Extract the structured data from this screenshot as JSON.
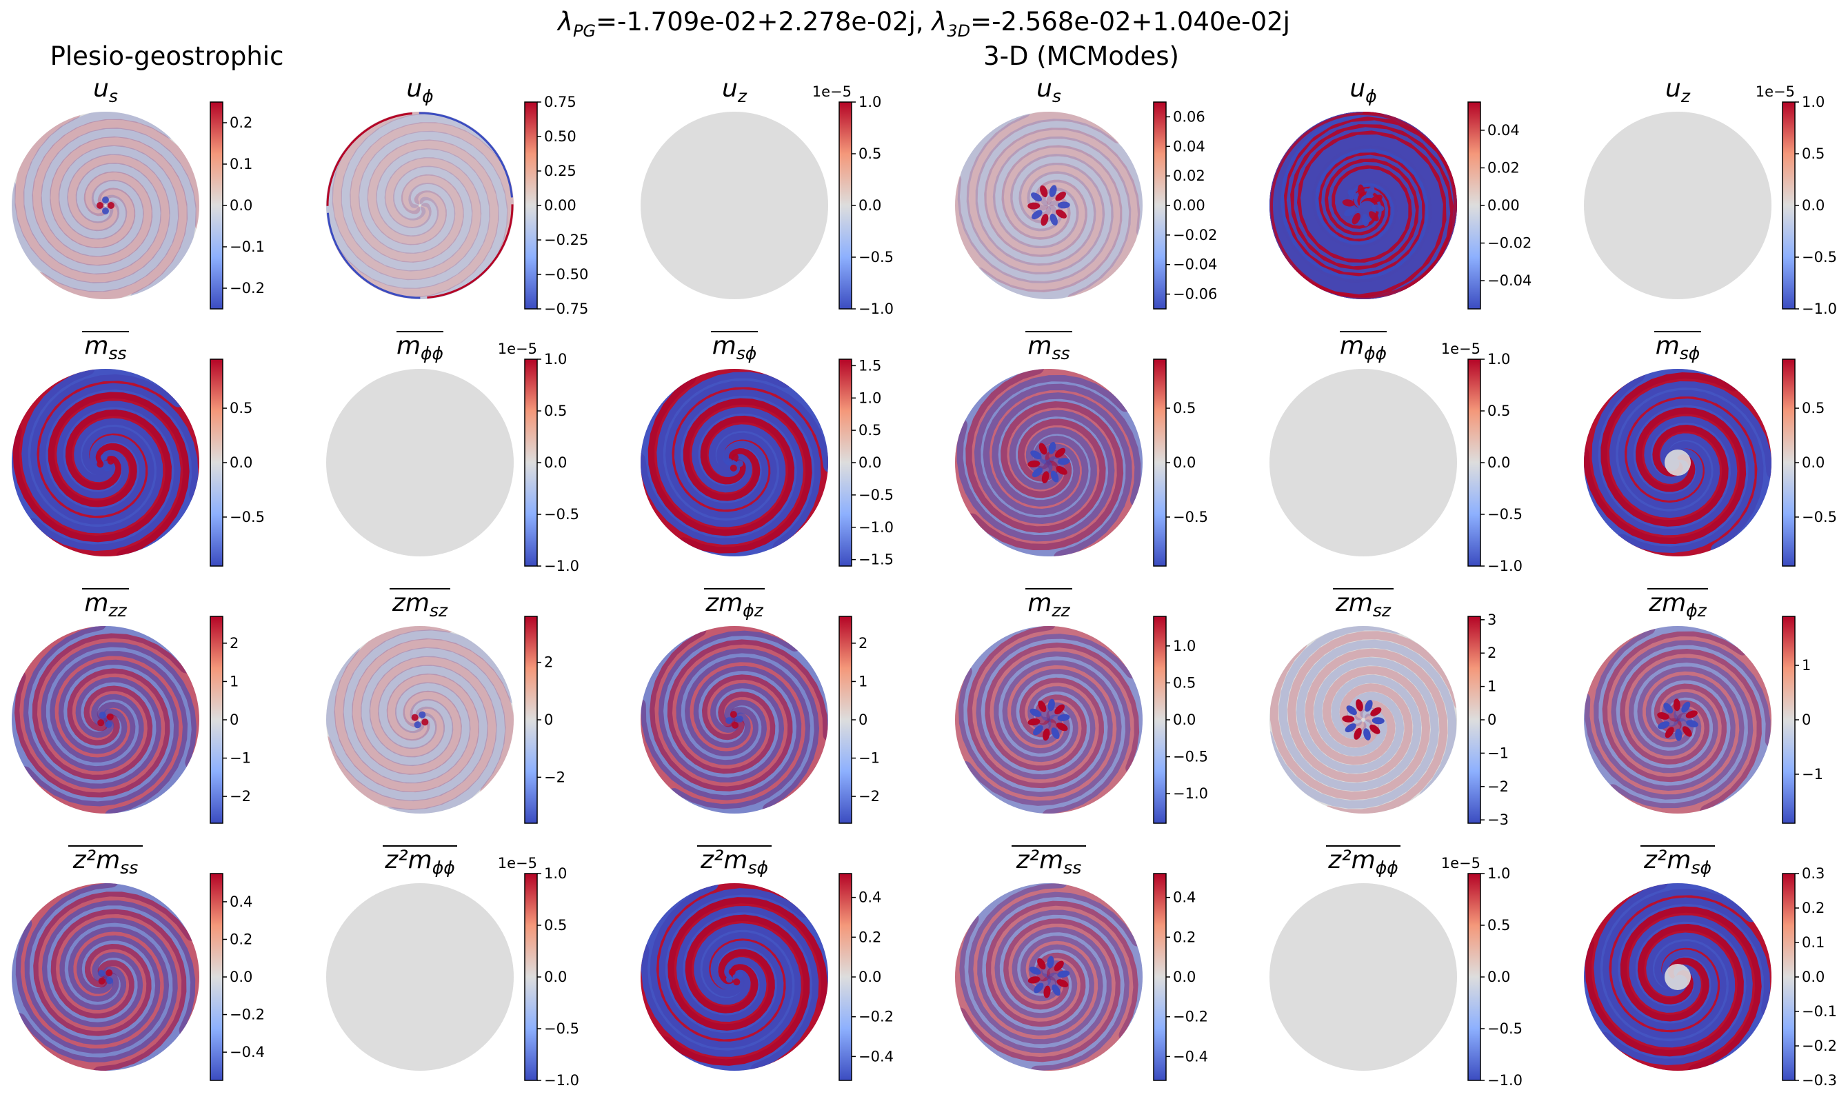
{
  "figure": {
    "suptitle": {
      "lambda_pg_label": "λ",
      "lambda_pg_sub": "PG",
      "lambda_pg_value": "=-1.709e-02+2.278e-02j, ",
      "lambda_3d_label": "λ",
      "lambda_3d_sub": "3D",
      "lambda_3d_value": "=-2.568e-02+1.040e-02j"
    },
    "group_titles": [
      "Plesio-geostrophic",
      "3-D (MCModes)"
    ],
    "colormap": "coolwarm",
    "colors": {
      "cmap_low": "#3b4cc0",
      "cmap_mid": "#dddddd",
      "cmap_high": "#b40426",
      "background_disk": "#dddddd"
    }
  },
  "chart_data": [
    {
      "type": "heatmap",
      "row": 0,
      "col": 0,
      "title": {
        "main": "u",
        "sub": "s",
        "overline": false,
        "pre": ""
      },
      "pattern": "spiral_center",
      "amplitude": 0.25,
      "tick_values": [
        0.2,
        0.1,
        0.0,
        -0.1,
        -0.2
      ],
      "tick_labels": [
        "0.2",
        "0.1",
        "0.0",
        "−0.1",
        "−0.2"
      ],
      "colorbar_range": [
        -0.25,
        0.25
      ],
      "exponent": ""
    },
    {
      "type": "heatmap",
      "row": 0,
      "col": 1,
      "title": {
        "main": "u",
        "sub": "ϕ",
        "overline": false,
        "pre": ""
      },
      "pattern": "spiral_rim",
      "amplitude": 0.75,
      "tick_values": [
        0.75,
        0.5,
        0.25,
        0.0,
        -0.25,
        -0.5,
        -0.75
      ],
      "tick_labels": [
        "0.75",
        "0.50",
        "0.25",
        "0.00",
        "−0.25",
        "−0.50",
        "−0.75"
      ],
      "colorbar_range": [
        -0.75,
        0.75
      ],
      "exponent": ""
    },
    {
      "type": "heatmap",
      "row": 0,
      "col": 2,
      "title": {
        "main": "u",
        "sub": "z",
        "overline": false,
        "pre": ""
      },
      "pattern": "zero",
      "amplitude": 1.0,
      "tick_values": [
        1.0,
        0.5,
        0.0,
        -0.5,
        -1.0
      ],
      "tick_labels": [
        "1.0",
        "0.5",
        "0.0",
        "−0.5",
        "−1.0"
      ],
      "colorbar_range": [
        -1.0,
        1.0
      ],
      "exponent": "1e−5"
    },
    {
      "type": "heatmap",
      "row": 0,
      "col": 3,
      "title": {
        "main": "u",
        "sub": "s",
        "overline": false,
        "pre": ""
      },
      "pattern": "lobes_weak",
      "amplitude": 0.07,
      "tick_values": [
        0.06,
        0.04,
        0.02,
        0.0,
        -0.02,
        -0.04,
        -0.06
      ],
      "tick_labels": [
        "0.06",
        "0.04",
        "0.02",
        "0.00",
        "−0.02",
        "−0.04",
        "−0.06"
      ],
      "colorbar_range": [
        -0.07,
        0.07
      ],
      "exponent": ""
    },
    {
      "type": "heatmap",
      "row": 0,
      "col": 4,
      "title": {
        "main": "u",
        "sub": "ϕ",
        "overline": false,
        "pre": ""
      },
      "pattern": "ring_strong",
      "amplitude": 0.055,
      "tick_values": [
        0.04,
        0.02,
        0.0,
        -0.02,
        -0.04
      ],
      "tick_labels": [
        "0.04",
        "0.02",
        "0.00",
        "−0.02",
        "−0.04"
      ],
      "colorbar_range": [
        -0.055,
        0.055
      ],
      "exponent": ""
    },
    {
      "type": "heatmap",
      "row": 0,
      "col": 5,
      "title": {
        "main": "u",
        "sub": "z",
        "overline": false,
        "pre": ""
      },
      "pattern": "zero",
      "amplitude": 1.0,
      "tick_values": [
        1.0,
        0.5,
        0.0,
        -0.5,
        -1.0
      ],
      "tick_labels": [
        "1.0",
        "0.5",
        "0.0",
        "−0.5",
        "−1.0"
      ],
      "colorbar_range": [
        -1.0,
        1.0
      ],
      "exponent": "1e−5"
    },
    {
      "type": "heatmap",
      "row": 1,
      "col": 0,
      "title": {
        "main": "m",
        "sub": "ss",
        "overline": true,
        "pre": ""
      },
      "pattern": "spiral_strong",
      "amplitude": 0.95,
      "tick_values": [
        0.5,
        0.0,
        -0.5
      ],
      "tick_labels": [
        "0.5",
        "0.0",
        "−0.5"
      ],
      "colorbar_range": [
        -0.95,
        0.95
      ],
      "exponent": ""
    },
    {
      "type": "heatmap",
      "row": 1,
      "col": 1,
      "title": {
        "main": "m",
        "sub": "ϕϕ",
        "overline": true,
        "pre": ""
      },
      "pattern": "zero",
      "amplitude": 1.0,
      "tick_values": [
        1.0,
        0.5,
        0.0,
        -0.5,
        -1.0
      ],
      "tick_labels": [
        "1.0",
        "0.5",
        "0.0",
        "−0.5",
        "−1.0"
      ],
      "colorbar_range": [
        -1.0,
        1.0
      ],
      "exponent": "1e−5"
    },
    {
      "type": "heatmap",
      "row": 1,
      "col": 2,
      "title": {
        "main": "m",
        "sub": "sϕ",
        "overline": true,
        "pre": ""
      },
      "pattern": "spiral_strong",
      "amplitude": 1.6,
      "tick_values": [
        1.5,
        1.0,
        0.5,
        0.0,
        -0.5,
        -1.0,
        -1.5
      ],
      "tick_labels": [
        "1.5",
        "1.0",
        "0.5",
        "0.0",
        "−0.5",
        "−1.0",
        "−1.5"
      ],
      "colorbar_range": [
        -1.6,
        1.6
      ],
      "exponent": ""
    },
    {
      "type": "heatmap",
      "row": 1,
      "col": 3,
      "title": {
        "main": "m",
        "sub": "ss",
        "overline": true,
        "pre": ""
      },
      "pattern": "lobes_strong",
      "amplitude": 0.95,
      "tick_values": [
        0.5,
        0.0,
        -0.5
      ],
      "tick_labels": [
        "0.5",
        "0.0",
        "−0.5"
      ],
      "colorbar_range": [
        -0.95,
        0.95
      ],
      "exponent": ""
    },
    {
      "type": "heatmap",
      "row": 1,
      "col": 4,
      "title": {
        "main": "m",
        "sub": "ϕϕ",
        "overline": true,
        "pre": ""
      },
      "pattern": "zero",
      "amplitude": 1.0,
      "tick_values": [
        1.0,
        0.5,
        0.0,
        -0.5,
        -1.0
      ],
      "tick_labels": [
        "1.0",
        "0.5",
        "0.0",
        "−0.5",
        "−1.0"
      ],
      "colorbar_range": [
        -1.0,
        1.0
      ],
      "exponent": "1e−5"
    },
    {
      "type": "heatmap",
      "row": 1,
      "col": 5,
      "title": {
        "main": "m",
        "sub": "sϕ",
        "overline": true,
        "pre": ""
      },
      "pattern": "spiral_strong_hole",
      "amplitude": 0.95,
      "tick_values": [
        0.5,
        0.0,
        -0.5
      ],
      "tick_labels": [
        "0.5",
        "0.0",
        "−0.5"
      ],
      "colorbar_range": [
        -0.95,
        0.95
      ],
      "exponent": ""
    },
    {
      "type": "heatmap",
      "row": 2,
      "col": 0,
      "title": {
        "main": "m",
        "sub": "zz",
        "overline": true,
        "pre": ""
      },
      "pattern": "spiral_medium",
      "amplitude": 2.7,
      "tick_values": [
        2,
        1,
        0,
        -1,
        -2
      ],
      "tick_labels": [
        "2",
        "1",
        "0",
        "−1",
        "−2"
      ],
      "colorbar_range": [
        -2.7,
        2.7
      ],
      "exponent": ""
    },
    {
      "type": "heatmap",
      "row": 2,
      "col": 1,
      "title": {
        "main": "m",
        "sub": "sz",
        "overline": true,
        "pre": "z"
      },
      "pattern": "spiral_center",
      "amplitude": 3.6,
      "tick_values": [
        2,
        0,
        -2
      ],
      "tick_labels": [
        "2",
        "0",
        "−2"
      ],
      "colorbar_range": [
        -3.6,
        3.6
      ],
      "exponent": ""
    },
    {
      "type": "heatmap",
      "row": 2,
      "col": 2,
      "title": {
        "main": "m",
        "sub": "ϕz",
        "overline": true,
        "pre": "z"
      },
      "pattern": "spiral_medium",
      "amplitude": 2.7,
      "tick_values": [
        2,
        1,
        0,
        -1,
        -2
      ],
      "tick_labels": [
        "2",
        "1",
        "0",
        "−1",
        "−2"
      ],
      "colorbar_range": [
        -2.7,
        2.7
      ],
      "exponent": ""
    },
    {
      "type": "heatmap",
      "row": 2,
      "col": 3,
      "title": {
        "main": "m",
        "sub": "zz",
        "overline": true,
        "pre": ""
      },
      "pattern": "lobes_medium",
      "amplitude": 1.4,
      "tick_values": [
        1.0,
        0.5,
        0.0,
        -0.5,
        -1.0
      ],
      "tick_labels": [
        "1.0",
        "0.5",
        "0.0",
        "−0.5",
        "−1.0"
      ],
      "colorbar_range": [
        -1.4,
        1.4
      ],
      "exponent": ""
    },
    {
      "type": "heatmap",
      "row": 2,
      "col": 4,
      "title": {
        "main": "m",
        "sub": "sz",
        "overline": true,
        "pre": "z"
      },
      "pattern": "lobes_center",
      "amplitude": 3.1,
      "tick_values": [
        3,
        2,
        1,
        0,
        -1,
        -2,
        -3
      ],
      "tick_labels": [
        "3",
        "2",
        "1",
        "0",
        "−1",
        "−2",
        "−3"
      ],
      "colorbar_range": [
        -3.1,
        3.1
      ],
      "exponent": ""
    },
    {
      "type": "heatmap",
      "row": 2,
      "col": 5,
      "title": {
        "main": "m",
        "sub": "ϕz",
        "overline": true,
        "pre": "z"
      },
      "pattern": "lobes_medium",
      "amplitude": 1.9,
      "tick_values": [
        1,
        0,
        -1
      ],
      "tick_labels": [
        "1",
        "0",
        "−1"
      ],
      "colorbar_range": [
        -1.9,
        1.9
      ],
      "exponent": ""
    },
    {
      "type": "heatmap",
      "row": 3,
      "col": 0,
      "title": {
        "main": "m",
        "sub": "ss",
        "overline": true,
        "pre": "z²"
      },
      "pattern": "spiral_medium",
      "amplitude": 0.55,
      "tick_values": [
        0.4,
        0.2,
        0.0,
        -0.2,
        -0.4
      ],
      "tick_labels": [
        "0.4",
        "0.2",
        "0.0",
        "−0.2",
        "−0.4"
      ],
      "colorbar_range": [
        -0.55,
        0.55
      ],
      "exponent": ""
    },
    {
      "type": "heatmap",
      "row": 3,
      "col": 1,
      "title": {
        "main": "m",
        "sub": "ϕϕ",
        "overline": true,
        "pre": "z²"
      },
      "pattern": "zero",
      "amplitude": 1.0,
      "tick_values": [
        1.0,
        0.5,
        0.0,
        -0.5,
        -1.0
      ],
      "tick_labels": [
        "1.0",
        "0.5",
        "0.0",
        "−0.5",
        "−1.0"
      ],
      "colorbar_range": [
        -1.0,
        1.0
      ],
      "exponent": "1e−5"
    },
    {
      "type": "heatmap",
      "row": 3,
      "col": 2,
      "title": {
        "main": "m",
        "sub": "sϕ",
        "overline": true,
        "pre": "z²"
      },
      "pattern": "spiral_strong",
      "amplitude": 0.52,
      "tick_values": [
        0.4,
        0.2,
        0.0,
        -0.2,
        -0.4
      ],
      "tick_labels": [
        "0.4",
        "0.2",
        "0.0",
        "−0.2",
        "−0.4"
      ],
      "colorbar_range": [
        -0.52,
        0.52
      ],
      "exponent": ""
    },
    {
      "type": "heatmap",
      "row": 3,
      "col": 3,
      "title": {
        "main": "m",
        "sub": "ss",
        "overline": true,
        "pre": "z²"
      },
      "pattern": "lobes_medium",
      "amplitude": 0.52,
      "tick_values": [
        0.4,
        0.2,
        0.0,
        -0.2,
        -0.4
      ],
      "tick_labels": [
        "0.4",
        "0.2",
        "0.0",
        "−0.2",
        "−0.4"
      ],
      "colorbar_range": [
        -0.52,
        0.52
      ],
      "exponent": ""
    },
    {
      "type": "heatmap",
      "row": 3,
      "col": 4,
      "title": {
        "main": "m",
        "sub": "ϕϕ",
        "overline": true,
        "pre": "z²"
      },
      "pattern": "zero",
      "amplitude": 1.0,
      "tick_values": [
        1.0,
        0.5,
        0.0,
        -0.5,
        -1.0
      ],
      "tick_labels": [
        "1.0",
        "0.5",
        "0.0",
        "−0.5",
        "−1.0"
      ],
      "colorbar_range": [
        -1.0,
        1.0
      ],
      "exponent": "1e−5"
    },
    {
      "type": "heatmap",
      "row": 3,
      "col": 5,
      "title": {
        "main": "m",
        "sub": "sϕ",
        "overline": true,
        "pre": "z²"
      },
      "pattern": "spiral_strong_hole",
      "amplitude": 0.3,
      "tick_values": [
        0.3,
        0.2,
        0.1,
        0.0,
        -0.1,
        -0.2,
        -0.3
      ],
      "tick_labels": [
        "0.3",
        "0.2",
        "0.1",
        "0.0",
        "−0.1",
        "−0.2",
        "−0.3"
      ],
      "colorbar_range": [
        -0.3,
        0.3
      ],
      "exponent": ""
    }
  ]
}
